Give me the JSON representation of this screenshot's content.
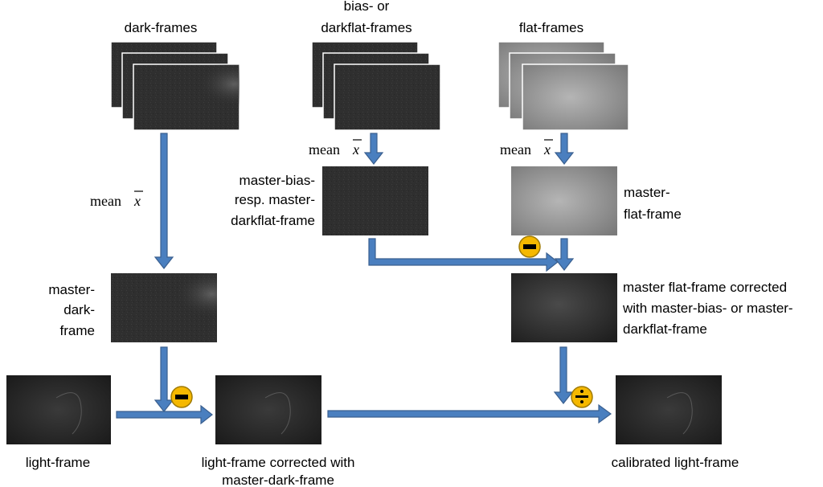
{
  "labels": {
    "dark_frames": "dark-frames",
    "bias_frames_line1": "bias- or",
    "bias_frames_line2": "darkflat-frames",
    "flat_frames": "flat-frames",
    "mean": "mean",
    "mean_symbol": "x",
    "master_bias_line1": "master-bias-",
    "master_bias_line2": "resp. master-",
    "master_bias_line3": "darkflat-frame",
    "master_flat_line1": "master-",
    "master_flat_line2": "flat-frame",
    "master_dark_line1": "master-",
    "master_dark_line2": "dark-",
    "master_dark_line3": "frame",
    "corrected_flat_line1": "master flat-frame corrected",
    "corrected_flat_line2": "with master-bias- or master-",
    "corrected_flat_line3": "darkflat-frame",
    "light_frame": "light-frame",
    "light_corrected_line1": "light-frame corrected with",
    "light_corrected_line2": "master-dark-frame",
    "calibrated": "calibrated light-frame"
  },
  "operators": {
    "subtract_symbol": "minus",
    "divide_symbol": "divide"
  },
  "colors": {
    "arrow_fill": "#4a7fbf",
    "operator_fill": "#f5b800",
    "dark_frame": "#2e2e2e",
    "flat_frame_light": "#a6a6a6"
  }
}
